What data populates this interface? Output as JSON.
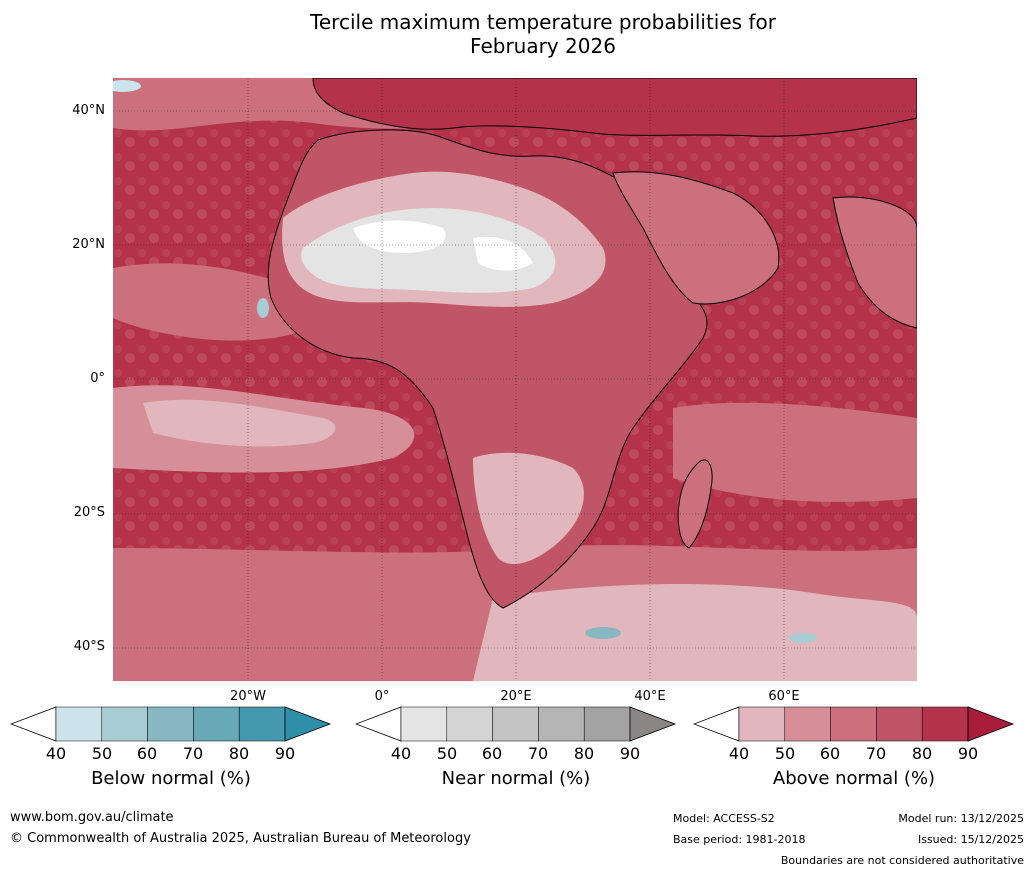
{
  "title": {
    "line1": "Tercile maximum temperature probabilities for",
    "line2": "February 2026"
  },
  "map": {
    "latitude_labels": [
      "40°N",
      "20°N",
      "0°",
      "20°S",
      "40°S"
    ],
    "longitude_labels": [
      "20°W",
      "0°",
      "20°E",
      "40°E",
      "60°E"
    ],
    "region": "Africa, Europe, Middle East and South Asia"
  },
  "legends": [
    {
      "label": "Below normal (%)",
      "ticks": [
        "40",
        "50",
        "60",
        "70",
        "80",
        "90"
      ],
      "colors": [
        "#ffffff",
        "#cbe3ea",
        "#a8ccd3",
        "#87b7c2",
        "#67a9b5",
        "#4699ad",
        "#2f8fa8"
      ]
    },
    {
      "label": "Near normal (%)",
      "ticks": [
        "40",
        "50",
        "60",
        "70",
        "80",
        "90"
      ],
      "colors": [
        "#ffffff",
        "#e4e4e4",
        "#d4d4d4",
        "#c4c4c4",
        "#b5b5b5",
        "#a3a3a3",
        "#8a8686"
      ]
    },
    {
      "label": "Above normal (%)",
      "ticks": [
        "40",
        "50",
        "60",
        "70",
        "80",
        "90"
      ],
      "colors": [
        "#ffffff",
        "#e1b6bd",
        "#d68f99",
        "#cb707c",
        "#bf5566",
        "#b4334a",
        "#a81d3b"
      ]
    }
  ],
  "footer": {
    "url": "www.bom.gov.au/climate",
    "copyright": "© Commonwealth of Australia 2025, Australian Bureau of Meteorology",
    "model": "Model: ACCESS-S2",
    "base_period": "Base period: 1981-2018",
    "model_run": "Model run: 13/12/2025",
    "issued": "Issued: 15/12/2025",
    "disclaimer": "Boundaries are not considered authoritative"
  }
}
